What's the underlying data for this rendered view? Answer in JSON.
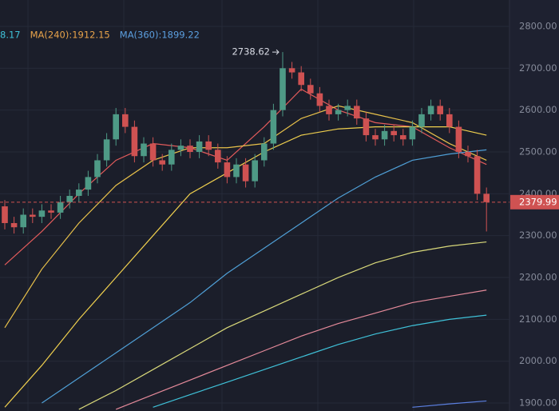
{
  "chart_data": {
    "type": "candlestick",
    "ylim": [
      1881,
      2863
    ],
    "yticks": [
      {
        "value": 1900,
        "label": "1900.00"
      },
      {
        "value": 2000,
        "label": "2000.00"
      },
      {
        "value": 2100,
        "label": "2100.00"
      },
      {
        "value": 2200,
        "label": "2200.00"
      },
      {
        "value": 2300,
        "label": "2300.00"
      },
      {
        "value": 2400,
        "label": "2400.00"
      },
      {
        "value": 2500,
        "label": "2500.00"
      },
      {
        "value": 2600,
        "label": "2600.00"
      },
      {
        "value": 2700,
        "label": "2700.00"
      },
      {
        "value": 2800,
        "label": "2800.00"
      }
    ],
    "grid": true,
    "up_color": "#4e9a86",
    "down_color": "#cf5252",
    "open": [
      2370,
      2330,
      2320,
      2350,
      2345,
      2360,
      2355,
      2380,
      2395,
      2410,
      2440,
      2480,
      2530,
      2590,
      2560,
      2490,
      2520,
      2480,
      2470,
      2505,
      2515,
      2500,
      2525,
      2505,
      2475,
      2440,
      2470,
      2430,
      2480,
      2520,
      2600,
      2700,
      2690,
      2660,
      2640,
      2610,
      2590,
      2600,
      2610,
      2580,
      2540,
      2530,
      2550,
      2540,
      2530,
      2560,
      2590,
      2610,
      2590,
      2560,
      2500,
      2490,
      2400
    ],
    "high": [
      2385,
      2345,
      2365,
      2365,
      2375,
      2375,
      2395,
      2410,
      2425,
      2455,
      2495,
      2545,
      2605,
      2605,
      2575,
      2535,
      2535,
      2495,
      2520,
      2530,
      2530,
      2540,
      2540,
      2520,
      2490,
      2485,
      2485,
      2495,
      2535,
      2615,
      2738.62,
      2715,
      2705,
      2675,
      2655,
      2625,
      2615,
      2625,
      2625,
      2595,
      2555,
      2565,
      2565,
      2555,
      2575,
      2605,
      2625,
      2625,
      2605,
      2575,
      2515,
      2505,
      2415
    ],
    "low": [
      2315,
      2305,
      2305,
      2330,
      2330,
      2340,
      2340,
      2365,
      2380,
      2395,
      2425,
      2465,
      2515,
      2545,
      2475,
      2475,
      2465,
      2455,
      2455,
      2490,
      2485,
      2485,
      2490,
      2460,
      2425,
      2425,
      2415,
      2415,
      2465,
      2505,
      2585,
      2675,
      2645,
      2625,
      2595,
      2575,
      2575,
      2585,
      2565,
      2525,
      2515,
      2515,
      2525,
      2515,
      2515,
      2545,
      2575,
      2575,
      2545,
      2485,
      2475,
      2385,
      2310
    ],
    "close": [
      2330,
      2320,
      2350,
      2345,
      2360,
      2355,
      2380,
      2395,
      2410,
      2440,
      2480,
      2530,
      2590,
      2560,
      2490,
      2520,
      2480,
      2470,
      2505,
      2515,
      2500,
      2525,
      2505,
      2475,
      2440,
      2470,
      2430,
      2480,
      2520,
      2600,
      2700,
      2690,
      2660,
      2640,
      2610,
      2590,
      2600,
      2610,
      2580,
      2540,
      2530,
      2550,
      2540,
      2530,
      2560,
      2590,
      2610,
      2590,
      2560,
      2500,
      2490,
      2400,
      2379.99
    ],
    "lines": [
      {
        "color": "#e25b5b",
        "x": [
          0,
          4,
          8,
          12,
          16,
          20,
          24,
          28,
          32,
          36,
          40,
          44,
          48,
          52
        ],
        "values": [
          2230,
          2310,
          2400,
          2480,
          2520,
          2510,
          2480,
          2560,
          2650,
          2600,
          2570,
          2560,
          2510,
          2470
        ]
      },
      {
        "color": "#e8c14a",
        "x": [
          0,
          4,
          8,
          12,
          16,
          20,
          24,
          28,
          32,
          36,
          40,
          44,
          48,
          52
        ],
        "values": [
          2080,
          2220,
          2330,
          2420,
          2480,
          2510,
          2510,
          2520,
          2580,
          2610,
          2590,
          2570,
          2520,
          2480
        ]
      },
      {
        "color": "#f0d04e",
        "x": [
          0,
          4,
          8,
          12,
          16,
          20,
          24,
          28,
          32,
          36,
          40,
          44,
          48,
          52
        ],
        "values": [
          1890,
          1990,
          2100,
          2200,
          2300,
          2400,
          2450,
          2500,
          2540,
          2555,
          2560,
          2560,
          2560,
          2540
        ]
      },
      {
        "color": "#4f9fd6",
        "x": [
          0,
          4,
          8,
          12,
          16,
          20,
          24,
          28,
          32,
          36,
          40,
          44,
          48,
          52
        ],
        "values": [
          null,
          1900,
          1960,
          2020,
          2080,
          2140,
          2210,
          2270,
          2330,
          2390,
          2440,
          2480,
          2495,
          2505
        ]
      },
      {
        "color": "#d9d97a",
        "x": [
          8,
          12,
          16,
          20,
          24,
          28,
          32,
          36,
          40,
          44,
          48,
          52
        ],
        "values": [
          1885,
          1930,
          1980,
          2030,
          2080,
          2120,
          2160,
          2200,
          2235,
          2260,
          2275,
          2285
        ]
      },
      {
        "color": "#e58a9a",
        "x": [
          12,
          16,
          20,
          24,
          28,
          32,
          36,
          40,
          44,
          48,
          52
        ],
        "values": [
          1885,
          1920,
          1955,
          1990,
          2025,
          2060,
          2090,
          2115,
          2140,
          2155,
          2170
        ]
      },
      {
        "color": "#3fc1d8",
        "x": [
          16,
          20,
          24,
          28,
          32,
          36,
          40,
          44,
          48,
          52
        ],
        "values": [
          1890,
          1920,
          1950,
          1980,
          2010,
          2040,
          2065,
          2085,
          2100,
          2110
        ]
      },
      {
        "color": "#5b7fe0",
        "x": [
          44,
          48,
          52
        ],
        "values": [
          1890,
          1898,
          1905
        ]
      }
    ],
    "legend": [
      {
        "label": "8.17",
        "color": "#3fc1d8"
      },
      {
        "label": "MA(240):1912.15",
        "color": "#e8a34a"
      },
      {
        "label": "MA(360):1899.22",
        "color": "#5b9fe0"
      }
    ]
  }
}
